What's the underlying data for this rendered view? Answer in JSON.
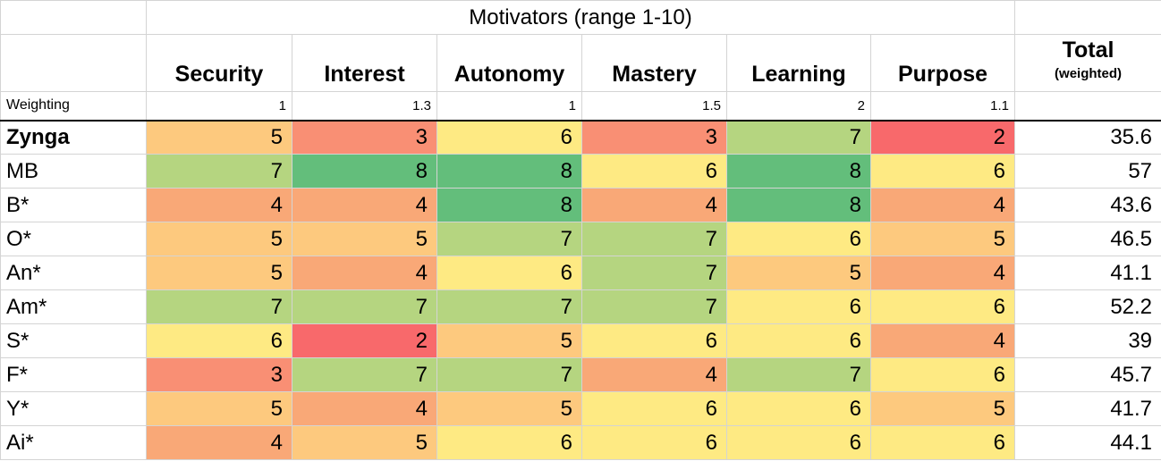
{
  "title": "Motivators (range 1-10)",
  "columns": [
    "Security",
    "Interest",
    "Autonomy",
    "Mastery",
    "Learning",
    "Purpose"
  ],
  "total_header": {
    "main": "Total",
    "sub": "(weighted)"
  },
  "weighting": {
    "label": "Weighting",
    "values": [
      "1",
      "1.3",
      "1",
      "1.5",
      "2",
      "1.1"
    ]
  },
  "color_scale": {
    "2": "#f8696b",
    "3": "#f98f74",
    "4": "#f9a877",
    "5": "#fdc97e",
    "6": "#feea83",
    "7": "#b5d580",
    "8": "#63be7b"
  },
  "rows": [
    {
      "name": "Zynga",
      "bold": true,
      "scores": [
        "5",
        "3",
        "6",
        "3",
        "7",
        "2"
      ],
      "total": "35.6"
    },
    {
      "name": "MB",
      "scores": [
        "7",
        "8",
        "8",
        "6",
        "8",
        "6"
      ],
      "total": "57"
    },
    {
      "name": "B*",
      "scores": [
        "4",
        "4",
        "8",
        "4",
        "8",
        "4"
      ],
      "total": "43.6"
    },
    {
      "name": "O*",
      "scores": [
        "5",
        "5",
        "7",
        "7",
        "6",
        "5"
      ],
      "total": "46.5"
    },
    {
      "name": "An*",
      "scores": [
        "5",
        "4",
        "6",
        "7",
        "5",
        "4"
      ],
      "total": "41.1"
    },
    {
      "name": "Am*",
      "scores": [
        "7",
        "7",
        "7",
        "7",
        "6",
        "6"
      ],
      "total": "52.2"
    },
    {
      "name": "S*",
      "scores": [
        "6",
        "2",
        "5",
        "6",
        "6",
        "4"
      ],
      "total": "39"
    },
    {
      "name": "F*",
      "scores": [
        "3",
        "7",
        "7",
        "4",
        "7",
        "6"
      ],
      "total": "45.7"
    },
    {
      "name": "Y*",
      "scores": [
        "5",
        "4",
        "5",
        "6",
        "6",
        "5"
      ],
      "total": "41.7"
    },
    {
      "name": "Ai*",
      "scores": [
        "4",
        "5",
        "6",
        "6",
        "6",
        "6"
      ],
      "total": "44.1"
    }
  ]
}
